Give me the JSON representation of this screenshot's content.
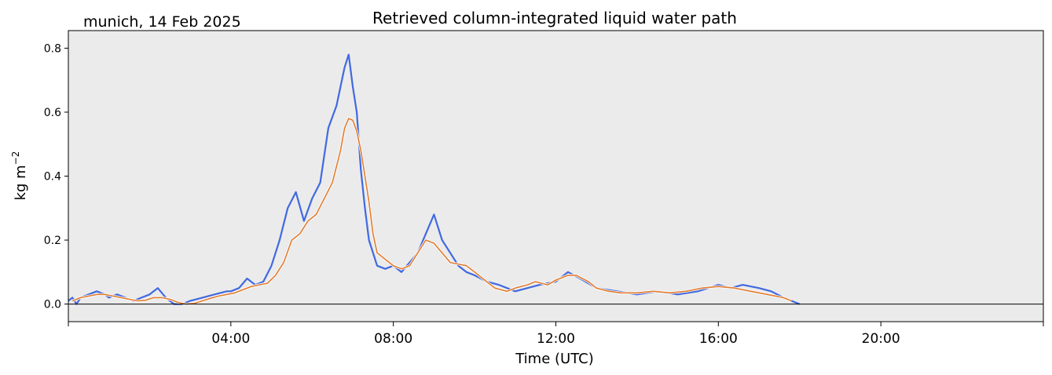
{
  "chart_data": {
    "type": "line",
    "title": "Retrieved column-integrated liquid water path",
    "subtitle": "munich, 14 Feb 2025",
    "xlabel": "Time (UTC)",
    "ylabel": "kg m",
    "ylabel_superscript": "−2",
    "xlim_hours": [
      0,
      24
    ],
    "ylim": [
      -0.055,
      0.855
    ],
    "x_ticks": [
      {
        "hour": 4,
        "label": "04:00"
      },
      {
        "hour": 8,
        "label": "08:00"
      },
      {
        "hour": 12,
        "label": "12:00"
      },
      {
        "hour": 16,
        "label": "16:00"
      },
      {
        "hour": 20,
        "label": "20:00"
      }
    ],
    "y_ticks": [
      {
        "value": 0.0,
        "label": "0.0"
      },
      {
        "value": 0.2,
        "label": "0.2"
      },
      {
        "value": 0.4,
        "label": "0.4"
      },
      {
        "value": 0.6,
        "label": "0.6"
      },
      {
        "value": 0.8,
        "label": "0.8"
      }
    ],
    "zero_line": true,
    "grid": false,
    "background": "#ebebeb",
    "series": [
      {
        "color": "#4169e1",
        "style": "raw",
        "x": [
          0.0,
          0.1,
          0.2,
          0.3,
          0.5,
          0.7,
          0.9,
          1.0,
          1.2,
          1.4,
          1.6,
          1.8,
          2.0,
          2.2,
          2.4,
          2.6,
          2.8,
          3.0,
          3.3,
          3.6,
          3.9,
          4.0,
          4.2,
          4.4,
          4.6,
          4.8,
          5.0,
          5.2,
          5.4,
          5.6,
          5.8,
          6.0,
          6.2,
          6.4,
          6.6,
          6.8,
          6.9,
          7.0,
          7.1,
          7.2,
          7.3,
          7.4,
          7.5,
          7.6,
          7.8,
          8.0,
          8.2,
          8.4,
          8.6,
          8.8,
          9.0,
          9.2,
          9.4,
          9.6,
          9.8,
          10.0,
          10.3,
          10.6,
          11.0,
          11.3,
          11.6,
          12.0,
          12.3,
          12.6,
          13.0,
          13.5,
          14.0,
          14.5,
          15.0,
          15.5,
          16.0,
          16.3,
          16.6,
          17.0,
          17.3,
          17.6,
          18.0
        ],
        "y": [
          0.01,
          0.02,
          0.0,
          0.02,
          0.03,
          0.04,
          0.03,
          0.02,
          0.03,
          0.02,
          0.01,
          0.02,
          0.03,
          0.05,
          0.02,
          0.0,
          0.0,
          0.01,
          0.02,
          0.03,
          0.04,
          0.04,
          0.05,
          0.08,
          0.06,
          0.07,
          0.12,
          0.2,
          0.3,
          0.35,
          0.26,
          0.33,
          0.38,
          0.55,
          0.62,
          0.74,
          0.78,
          0.68,
          0.6,
          0.42,
          0.3,
          0.2,
          0.16,
          0.12,
          0.11,
          0.12,
          0.1,
          0.13,
          0.16,
          0.22,
          0.28,
          0.2,
          0.16,
          0.12,
          0.1,
          0.09,
          0.07,
          0.06,
          0.04,
          0.05,
          0.06,
          0.07,
          0.1,
          0.08,
          0.05,
          0.04,
          0.03,
          0.04,
          0.03,
          0.04,
          0.06,
          0.05,
          0.06,
          0.05,
          0.04,
          0.02,
          0.0
        ]
      },
      {
        "color": "#e07a2e",
        "style": "smoothed",
        "x": [
          0.1,
          0.3,
          0.5,
          0.7,
          0.9,
          1.1,
          1.3,
          1.5,
          1.7,
          1.9,
          2.1,
          2.3,
          2.5,
          2.7,
          2.9,
          3.1,
          3.3,
          3.5,
          3.7,
          3.9,
          4.1,
          4.3,
          4.5,
          4.7,
          4.9,
          5.1,
          5.3,
          5.5,
          5.7,
          5.9,
          6.1,
          6.3,
          6.5,
          6.7,
          6.8,
          6.9,
          7.0,
          7.1,
          7.2,
          7.3,
          7.4,
          7.5,
          7.6,
          7.8,
          8.0,
          8.2,
          8.4,
          8.6,
          8.8,
          9.0,
          9.2,
          9.4,
          9.6,
          9.8,
          10.0,
          10.2,
          10.5,
          10.8,
          11.0,
          11.3,
          11.5,
          11.8,
          12.0,
          12.3,
          12.5,
          12.8,
          13.0,
          13.3,
          13.6,
          14.0,
          14.4,
          14.8,
          15.2,
          15.6,
          16.0,
          16.4,
          16.8,
          17.2,
          17.6,
          17.8
        ],
        "y": [
          0.01,
          0.02,
          0.025,
          0.03,
          0.03,
          0.025,
          0.02,
          0.015,
          0.01,
          0.012,
          0.02,
          0.02,
          0.015,
          0.005,
          0.0,
          0.002,
          0.01,
          0.018,
          0.025,
          0.03,
          0.035,
          0.045,
          0.055,
          0.06,
          0.065,
          0.09,
          0.13,
          0.2,
          0.22,
          0.26,
          0.28,
          0.33,
          0.38,
          0.48,
          0.55,
          0.58,
          0.575,
          0.54,
          0.48,
          0.4,
          0.32,
          0.22,
          0.16,
          0.14,
          0.12,
          0.11,
          0.12,
          0.16,
          0.2,
          0.19,
          0.16,
          0.13,
          0.125,
          0.12,
          0.1,
          0.08,
          0.05,
          0.04,
          0.05,
          0.06,
          0.07,
          0.06,
          0.075,
          0.09,
          0.09,
          0.07,
          0.05,
          0.04,
          0.035,
          0.035,
          0.04,
          0.035,
          0.04,
          0.05,
          0.055,
          0.05,
          0.04,
          0.03,
          0.02,
          0.01
        ]
      }
    ]
  }
}
